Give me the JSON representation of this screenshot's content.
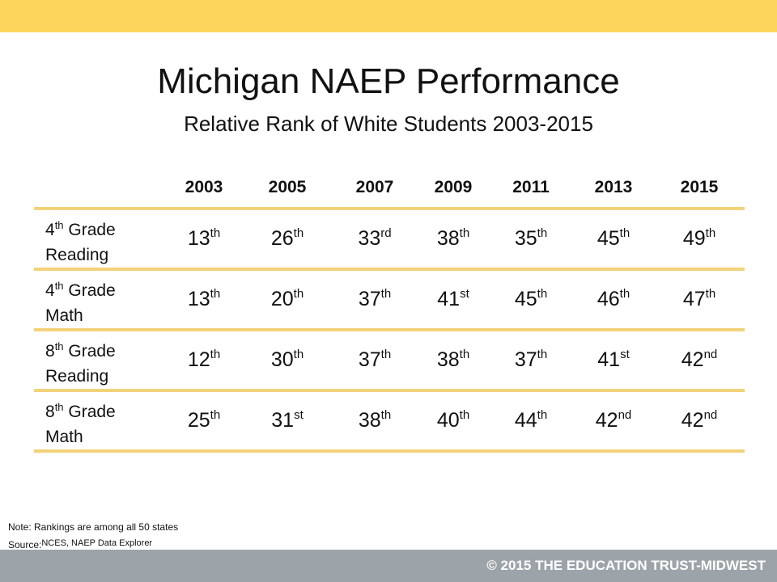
{
  "colors": {
    "top_bar": "#fdd55c",
    "rule": "#f2d37a",
    "footer_bar": "#9da4a9"
  },
  "title": "Michigan NAEP Performance",
  "subtitle": "Relative Rank of White Students 2003-2015",
  "table": {
    "years": [
      "2003",
      "2005",
      "2007",
      "2009",
      "2011",
      "2013",
      "2015"
    ],
    "rows": [
      {
        "label": [
          {
            "num": "4",
            "suf": "th",
            "rest": " Grade"
          },
          {
            "text": "Reading"
          }
        ],
        "ranks": [
          {
            "n": "13",
            "s": "th"
          },
          {
            "n": "26",
            "s": "th"
          },
          {
            "n": "33",
            "s": "rd"
          },
          {
            "n": "38",
            "s": "th"
          },
          {
            "n": "35",
            "s": "th"
          },
          {
            "n": "45",
            "s": "th"
          },
          {
            "n": "49",
            "s": "th"
          }
        ]
      },
      {
        "label": [
          {
            "num": "4",
            "suf": "th",
            "rest": " Grade"
          },
          {
            "text": "Math"
          }
        ],
        "ranks": [
          {
            "n": "13",
            "s": "th"
          },
          {
            "n": "20",
            "s": "th"
          },
          {
            "n": "37",
            "s": "th"
          },
          {
            "n": "41",
            "s": "st"
          },
          {
            "n": "45",
            "s": "th"
          },
          {
            "n": "46",
            "s": "th"
          },
          {
            "n": "47",
            "s": "th"
          }
        ]
      },
      {
        "label": [
          {
            "num": "8",
            "suf": "th",
            "rest": " Grade"
          },
          {
            "text": "Reading"
          }
        ],
        "ranks": [
          {
            "n": "12",
            "s": "th"
          },
          {
            "n": "30",
            "s": "th"
          },
          {
            "n": "37",
            "s": "th"
          },
          {
            "n": "38",
            "s": "th"
          },
          {
            "n": "37",
            "s": "th"
          },
          {
            "n": "41",
            "s": "st"
          },
          {
            "n": "42",
            "s": "nd"
          }
        ]
      },
      {
        "label": [
          {
            "num": "8",
            "suf": "th",
            "rest": " Grade"
          },
          {
            "text": "Math"
          }
        ],
        "ranks": [
          {
            "n": "25",
            "s": "th"
          },
          {
            "n": "31",
            "s": "st"
          },
          {
            "n": "38",
            "s": "th"
          },
          {
            "n": "40",
            "s": "th"
          },
          {
            "n": "44",
            "s": "th"
          },
          {
            "n": "42",
            "s": "nd"
          },
          {
            "n": "42",
            "s": "nd"
          }
        ]
      }
    ]
  },
  "note": {
    "line1": "Note: Rankings are among all 50 states",
    "source_label": "Source:",
    "source_text": "NCES, NAEP Data Explorer"
  },
  "footer": "© 2015 THE EDUCATION TRUST-MIDWEST"
}
